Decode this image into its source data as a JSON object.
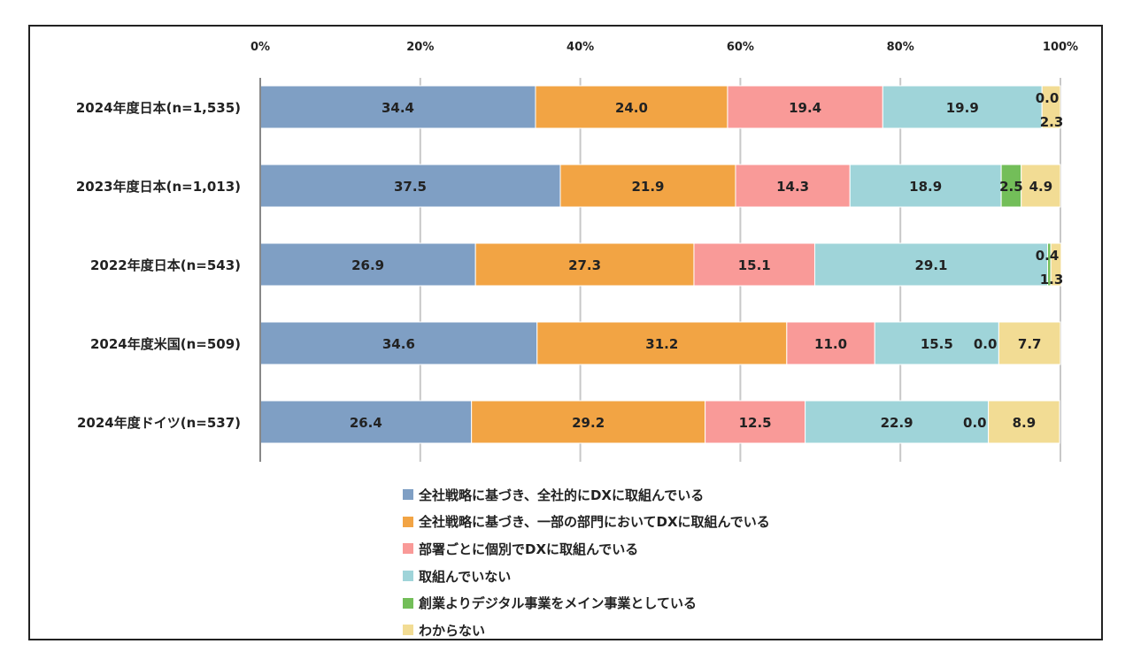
{
  "chart_data": {
    "type": "bar",
    "orientation": "horizontal",
    "stacked": true,
    "categories": [
      "2024年度日本(n=1,535)",
      "2023年度日本(n=1,013)",
      "2022年度日本(n=543)",
      "2024年度米国(n=509)",
      "2024年度ドイツ(n=537)"
    ],
    "series": [
      {
        "name": "全社戦略に基づき、全社的にDXに取組んでいる",
        "color": "#7f9fc4",
        "values": [
          34.4,
          37.5,
          26.9,
          34.6,
          26.4
        ]
      },
      {
        "name": "全社戦略に基づき、一部の部門においてDXに取組んでいる",
        "color": "#f2a444",
        "values": [
          24.0,
          21.9,
          27.3,
          31.2,
          29.2
        ]
      },
      {
        "name": "部署ごとに個別でDXに取組んでいる",
        "color": "#f99a98",
        "values": [
          19.4,
          14.3,
          15.1,
          11.0,
          12.5
        ]
      },
      {
        "name": "取組んでいない",
        "color": "#9fd4d9",
        "values": [
          19.9,
          18.9,
          29.1,
          15.5,
          22.9
        ]
      },
      {
        "name": "創業よりデジタル事業をメイン事業としている",
        "color": "#73be59",
        "values": [
          0.0,
          2.5,
          0.4,
          0.0,
          0.0
        ]
      },
      {
        "name": "わからない",
        "color": "#f2dc94",
        "values": [
          2.3,
          4.9,
          1.3,
          7.7,
          8.9
        ]
      }
    ],
    "xticks": [
      "0%",
      "20%",
      "40%",
      "60%",
      "80%",
      "100%"
    ],
    "xlim": [
      0,
      100
    ],
    "grid": true,
    "legend_position": "bottom"
  }
}
